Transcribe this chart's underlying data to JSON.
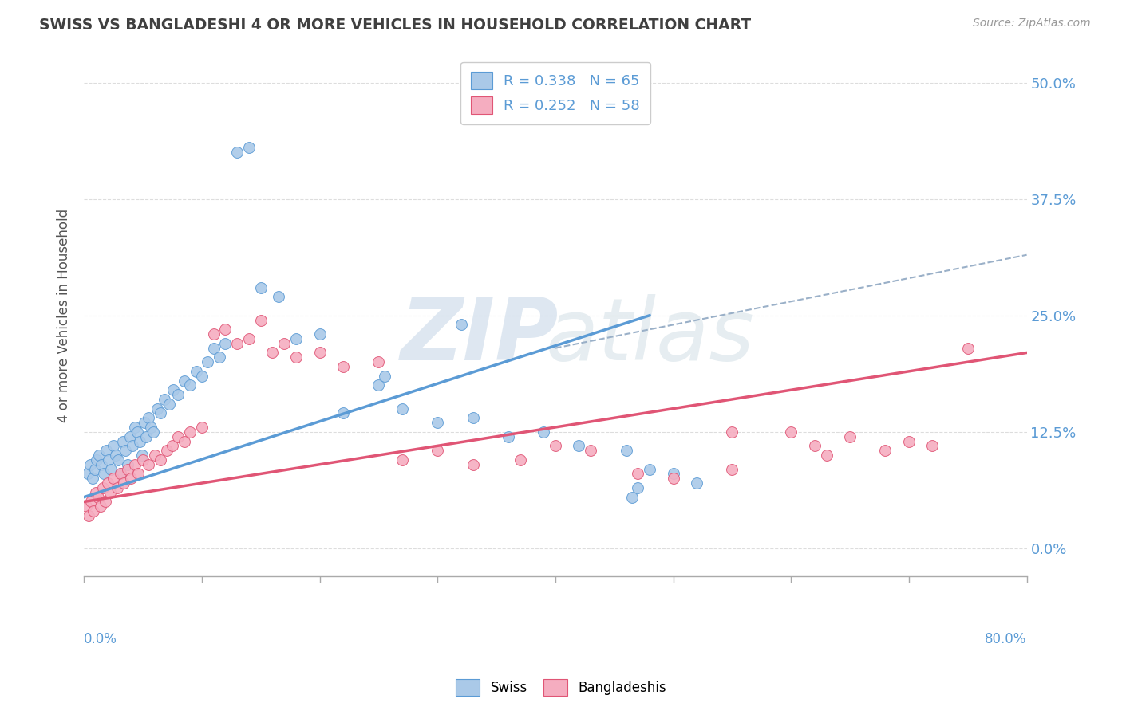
{
  "title": "SWISS VS BANGLADESHI 4 OR MORE VEHICLES IN HOUSEHOLD CORRELATION CHART",
  "source": "Source: ZipAtlas.com",
  "ylabel": "4 or more Vehicles in Household",
  "ytick_values": [
    0.0,
    12.5,
    25.0,
    37.5,
    50.0
  ],
  "xlim": [
    0.0,
    80.0
  ],
  "ylim": [
    -3.0,
    53.0
  ],
  "swiss_color": "#aac9e8",
  "bangladeshi_color": "#f5adc0",
  "swiss_line_color": "#5b9bd5",
  "bangladeshi_line_color": "#e05575",
  "dashed_line_color": "#9ab0c8",
  "legend_swiss_R": 0.338,
  "legend_swiss_N": 65,
  "legend_bangladeshi_R": 0.252,
  "legend_bangladeshi_N": 58,
  "swiss_scatter_x": [
    0.3,
    0.5,
    0.7,
    0.9,
    1.1,
    1.3,
    1.5,
    1.7,
    1.9,
    2.1,
    2.3,
    2.5,
    2.7,
    2.9,
    3.1,
    3.3,
    3.5,
    3.7,
    3.9,
    4.1,
    4.3,
    4.5,
    4.7,
    4.9,
    5.1,
    5.3,
    5.5,
    5.7,
    5.9,
    6.2,
    6.5,
    6.8,
    7.2,
    7.6,
    8.0,
    8.5,
    9.0,
    9.5,
    10.0,
    10.5,
    11.0,
    11.5,
    12.0,
    13.0,
    14.0,
    15.0,
    16.5,
    18.0,
    20.0,
    22.0,
    25.0,
    25.5,
    27.0,
    30.0,
    33.0,
    36.0,
    39.0,
    42.0,
    46.0,
    48.0,
    50.0,
    32.0,
    47.0,
    46.5,
    52.0
  ],
  "swiss_scatter_y": [
    8.0,
    9.0,
    7.5,
    8.5,
    9.5,
    10.0,
    9.0,
    8.0,
    10.5,
    9.5,
    8.5,
    11.0,
    10.0,
    9.5,
    8.0,
    11.5,
    10.5,
    9.0,
    12.0,
    11.0,
    13.0,
    12.5,
    11.5,
    10.0,
    13.5,
    12.0,
    14.0,
    13.0,
    12.5,
    15.0,
    14.5,
    16.0,
    15.5,
    17.0,
    16.5,
    18.0,
    17.5,
    19.0,
    18.5,
    20.0,
    21.5,
    20.5,
    22.0,
    42.5,
    43.0,
    28.0,
    27.0,
    22.5,
    23.0,
    14.5,
    17.5,
    18.5,
    15.0,
    13.5,
    14.0,
    12.0,
    12.5,
    11.0,
    10.5,
    8.5,
    8.0,
    24.0,
    6.5,
    5.5,
    7.0
  ],
  "bangladeshi_scatter_x": [
    0.2,
    0.4,
    0.6,
    0.8,
    1.0,
    1.2,
    1.4,
    1.6,
    1.8,
    2.0,
    2.2,
    2.5,
    2.8,
    3.1,
    3.4,
    3.7,
    4.0,
    4.3,
    4.6,
    5.0,
    5.5,
    6.0,
    6.5,
    7.0,
    7.5,
    8.0,
    8.5,
    9.0,
    10.0,
    11.0,
    12.0,
    13.0,
    14.0,
    15.0,
    16.0,
    17.0,
    18.0,
    20.0,
    22.0,
    25.0,
    27.0,
    30.0,
    33.0,
    37.0,
    40.0,
    43.0,
    47.0,
    50.0,
    55.0,
    60.0,
    65.0,
    70.0,
    55.0,
    62.0,
    63.0,
    68.0,
    72.0,
    75.0
  ],
  "bangladeshi_scatter_y": [
    4.5,
    3.5,
    5.0,
    4.0,
    6.0,
    5.5,
    4.5,
    6.5,
    5.0,
    7.0,
    6.0,
    7.5,
    6.5,
    8.0,
    7.0,
    8.5,
    7.5,
    9.0,
    8.0,
    9.5,
    9.0,
    10.0,
    9.5,
    10.5,
    11.0,
    12.0,
    11.5,
    12.5,
    13.0,
    23.0,
    23.5,
    22.0,
    22.5,
    24.5,
    21.0,
    22.0,
    20.5,
    21.0,
    19.5,
    20.0,
    9.5,
    10.5,
    9.0,
    9.5,
    11.0,
    10.5,
    8.0,
    7.5,
    8.5,
    12.5,
    12.0,
    11.5,
    12.5,
    11.0,
    10.0,
    10.5,
    11.0,
    21.5
  ],
  "swiss_trend_x": [
    0.0,
    48.0
  ],
  "swiss_trend_y": [
    5.5,
    25.0
  ],
  "bangladeshi_trend_x": [
    0.0,
    80.0
  ],
  "bangladeshi_trend_y": [
    5.0,
    21.0
  ],
  "dashed_trend_x": [
    40.0,
    80.0
  ],
  "dashed_trend_y": [
    21.5,
    31.5
  ],
  "background_color": "#ffffff",
  "plot_bg_color": "#ffffff",
  "grid_color": "#dddddd",
  "title_color": "#404040",
  "axis_label_color": "#555555",
  "right_tick_color": "#5b9bd5",
  "legend_text_color": "#5b9bd5"
}
